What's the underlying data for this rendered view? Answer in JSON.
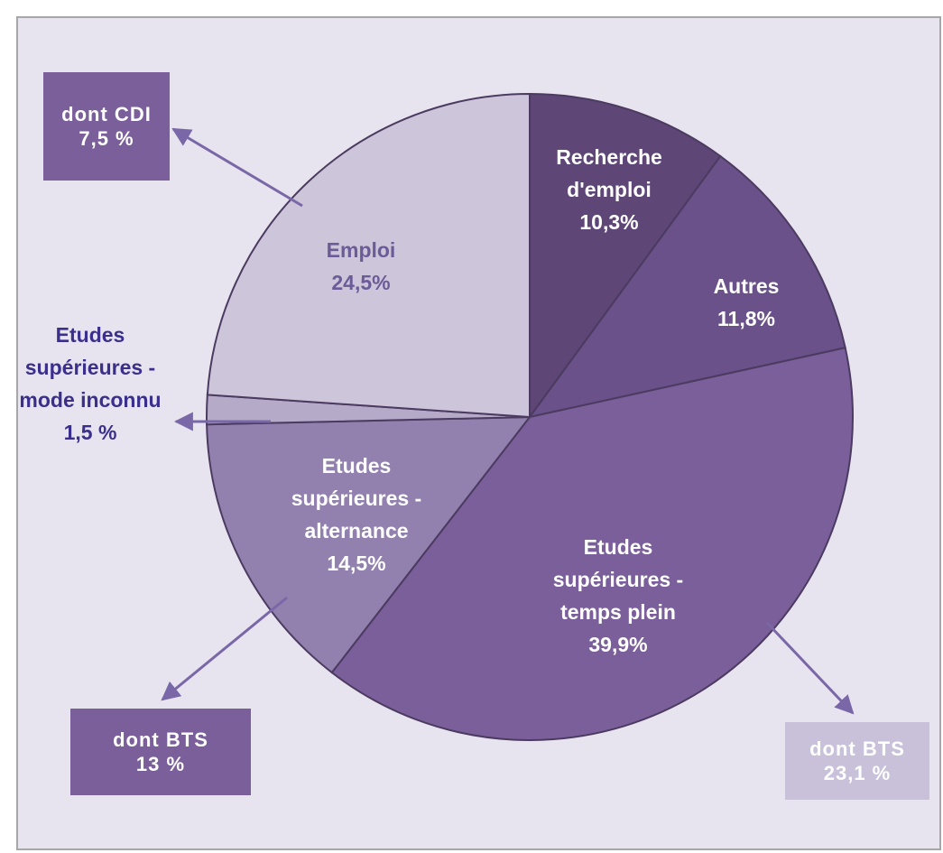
{
  "chart_data": {
    "type": "pie",
    "categories": [
      "Recherche d'emploi",
      "Autres",
      "Etudes supérieures - temps plein",
      "Etudes supérieures - alternance",
      "Etudes supérieures -mode inconnu",
      "Emploi"
    ],
    "values": [
      10.3,
      11.8,
      39.9,
      14.5,
      1.5,
      24.5
    ],
    "value_labels": [
      "10,3%",
      "11,8%",
      "39,9%",
      "14,5%",
      "1,5 %",
      "24,5%"
    ],
    "colors": [
      "#5e4677",
      "#6a5189",
      "#7b5f9b",
      "#9281ae",
      "#b6aac9",
      "#cdc5da"
    ],
    "annotations": [
      {
        "text": "dont CDI",
        "label": "7,5 %"
      },
      {
        "text": "dont BTS",
        "label": "13 %"
      },
      {
        "text": "dont BTS",
        "label": "23,1 %"
      }
    ]
  }
}
